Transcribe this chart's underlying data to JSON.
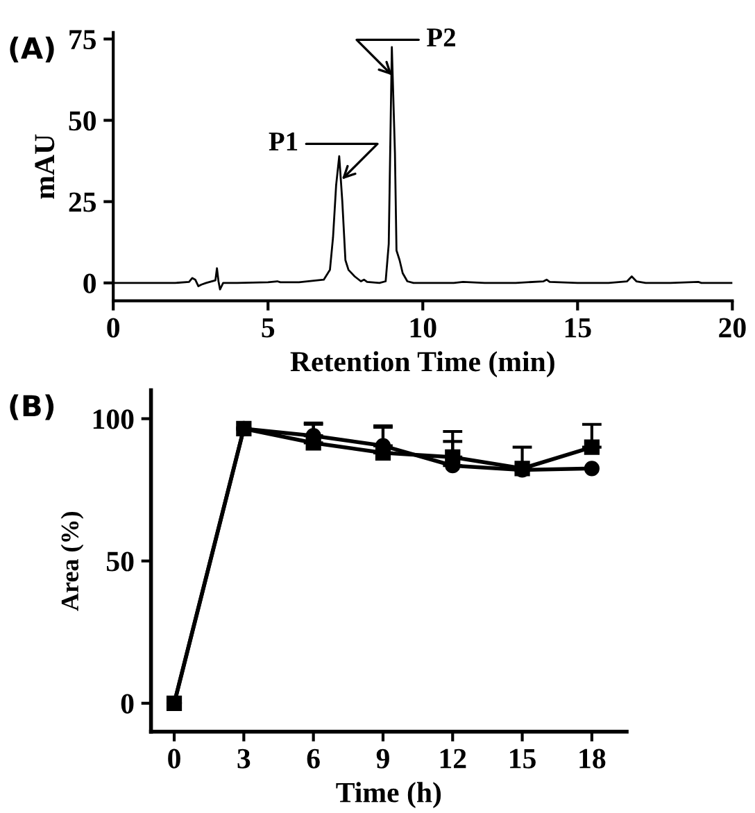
{
  "chart_data": [
    {
      "type": "line",
      "xlabel": "Retention Time (min)",
      "ylabel": "mAU",
      "annotations": [
        "(A)",
        {
          "text": "P1",
          "x": 7.3,
          "y": 31
        },
        {
          "text": "P2",
          "x": 9.1,
          "y": 63
        }
      ],
      "xlim": [
        0,
        20
      ],
      "ylim": [
        -5.5,
        77
      ],
      "xticks": [
        0,
        5,
        10,
        15,
        20
      ],
      "yticks": [
        0,
        25,
        50,
        75
      ],
      "grid": false,
      "marker": "none",
      "line_style": "solid",
      "series": [
        {
          "color": "#000000",
          "x": [
            0,
            1,
            2,
            2.45,
            2.55,
            2.65,
            2.75,
            2.85,
            3.0,
            3.3,
            3.35,
            3.4,
            3.45,
            3.55,
            4,
            5,
            5.3,
            5.4,
            6,
            6.8,
            7.0,
            7.1,
            7.2,
            7.3,
            7.4,
            7.5,
            7.6,
            7.8,
            8.0,
            8.1,
            8.2,
            8.6,
            8.8,
            8.9,
            9.0,
            9.1,
            9.15,
            9.25,
            9.35,
            9.5,
            9.7,
            10,
            11,
            11.3,
            12,
            13,
            13.9,
            14.0,
            14.1,
            15,
            16,
            16.6,
            16.75,
            16.9,
            17.2,
            18,
            18.9,
            19,
            20
          ],
          "values": [
            0,
            0,
            0,
            0.3,
            1.5,
            1,
            -1,
            -0.5,
            0,
            0.8,
            4.5,
            0.5,
            -2,
            0,
            0,
            0.2,
            0.5,
            0.2,
            0.2,
            1,
            4,
            14,
            30,
            39,
            25,
            7,
            4,
            2,
            0.5,
            1,
            0.3,
            0,
            0.5,
            12,
            72.5,
            40,
            10,
            7,
            3,
            0.5,
            0,
            0,
            0,
            0.3,
            0,
            0,
            0.5,
            1,
            0.3,
            0,
            0,
            0.5,
            2,
            0.5,
            0,
            0,
            0.3,
            0,
            0
          ]
        }
      ]
    },
    {
      "type": "line",
      "xlabel": "Time (h)",
      "ylabel": "Area (%)",
      "annotations": [
        "(B)"
      ],
      "xlim": [
        -1,
        19.5
      ],
      "ylim": [
        -10,
        110
      ],
      "xticks": [
        0,
        3,
        6,
        9,
        12,
        15,
        18
      ],
      "yticks": [
        0,
        50,
        100
      ],
      "grid": false,
      "line_style": "solid",
      "x": [
        0,
        3,
        6,
        9,
        12,
        15,
        18
      ],
      "series": [
        {
          "color": "#000000",
          "marker": "circle",
          "values": [
            0,
            96.5,
            94,
            90.5,
            83.5,
            82,
            82.5
          ],
          "errors": [
            null,
            null,
            [
              94,
              98
            ],
            [
              90.5,
              97
            ],
            [
              83.5,
              92
            ],
            null,
            null
          ]
        },
        {
          "color": "#000000",
          "marker": "square",
          "values": [
            0,
            96.5,
            91.5,
            88,
            86.5,
            82.5,
            90
          ],
          "errors": [
            null,
            null,
            [
              91.5,
              98.5
            ],
            [
              88,
              97.5
            ],
            [
              86.5,
              95.5
            ],
            [
              82.5,
              90
            ],
            [
              90,
              98
            ]
          ]
        }
      ]
    }
  ]
}
